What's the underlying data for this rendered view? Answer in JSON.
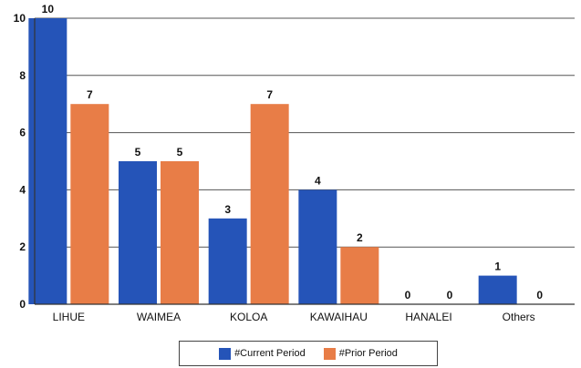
{
  "chart_data": {
    "type": "bar",
    "categories": [
      "LIHUE",
      "WAIMEA",
      "KOLOA",
      "KAWAIHAU",
      "HANALEI",
      "Others"
    ],
    "series": [
      {
        "name": "#Current Period",
        "values": [
          10,
          5,
          3,
          4,
          0,
          1
        ],
        "color": "#2554b8"
      },
      {
        "name": "#Prior Period",
        "values": [
          7,
          5,
          7,
          2,
          0,
          0
        ],
        "color": "#e87d47"
      }
    ],
    "yticks": [
      "0",
      "2",
      "4",
      "6",
      "8",
      "10"
    ],
    "ylim": [
      0,
      10
    ],
    "grid": true,
    "legend": "bottom-center"
  }
}
